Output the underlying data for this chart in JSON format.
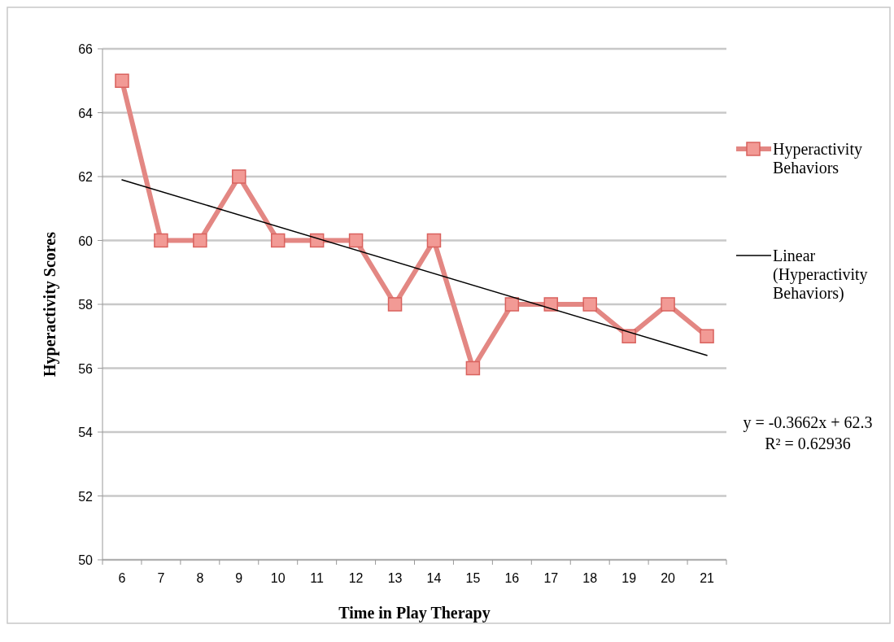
{
  "chart_data": {
    "type": "line",
    "xlabel": "Time in Play Therapy",
    "ylabel": "Hyperactivity Scores",
    "categories": [
      "6",
      "7",
      "8",
      "9",
      "10",
      "11",
      "12",
      "13",
      "14",
      "15",
      "16",
      "17",
      "18",
      "19",
      "20",
      "21"
    ],
    "series": [
      {
        "name": "Hyperactivity Behaviors",
        "color": "#d9625e",
        "marker": "square",
        "values": [
          65,
          60,
          60,
          62,
          60,
          60,
          60,
          58,
          60,
          56,
          58,
          58,
          58,
          57,
          58,
          57
        ]
      },
      {
        "name": "Linear (Hyperactivity Behaviors)",
        "type": "line",
        "color": "#000000",
        "marker": "none",
        "x": [
          "6",
          "21"
        ],
        "values": [
          61.9,
          56.4
        ]
      }
    ],
    "ylim": [
      50,
      66
    ],
    "yticks": [
      50,
      52,
      54,
      56,
      58,
      60,
      62,
      64,
      66
    ],
    "grid": "y",
    "legend": "right",
    "annotations": [
      "y = -0.3662x + 62.3",
      "R² = 0.62936"
    ]
  }
}
